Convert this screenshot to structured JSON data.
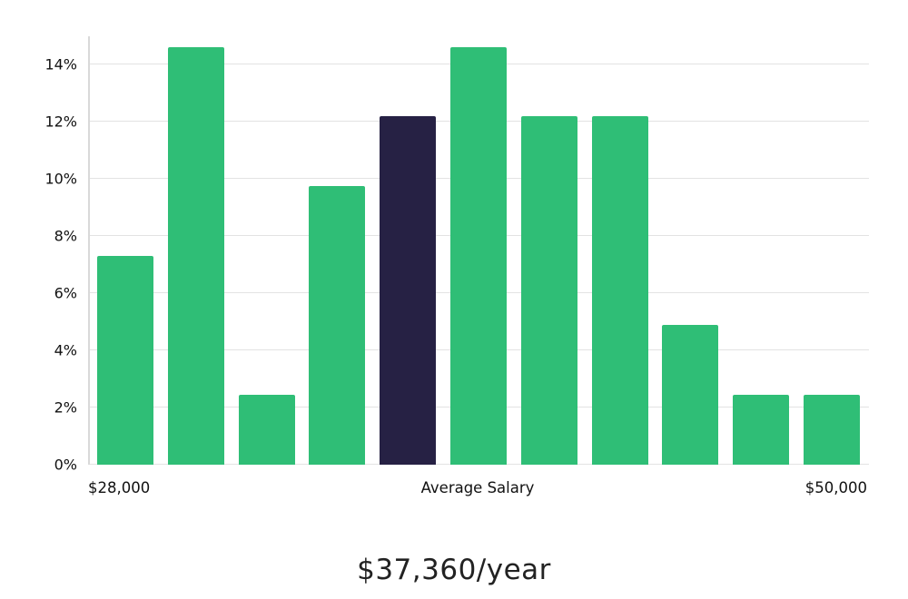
{
  "chart_data": {
    "type": "bar",
    "title": "$37,360/year",
    "values": [
      7.32,
      14.63,
      2.44,
      9.76,
      12.2,
      14.63,
      12.2,
      12.2,
      4.88,
      2.44,
      2.44
    ],
    "highlight_index": 4,
    "bar_color": "#2fbe76",
    "highlight_color": "#262144",
    "yticks": [
      0,
      2,
      4,
      6,
      8,
      10,
      12,
      14
    ],
    "ytick_suffix": "%",
    "ylim": [
      0,
      15
    ],
    "grid": true,
    "legend": "none",
    "x_axis_labels": {
      "left": "$28,000",
      "center": "Average Salary",
      "right": "$50,000"
    }
  }
}
